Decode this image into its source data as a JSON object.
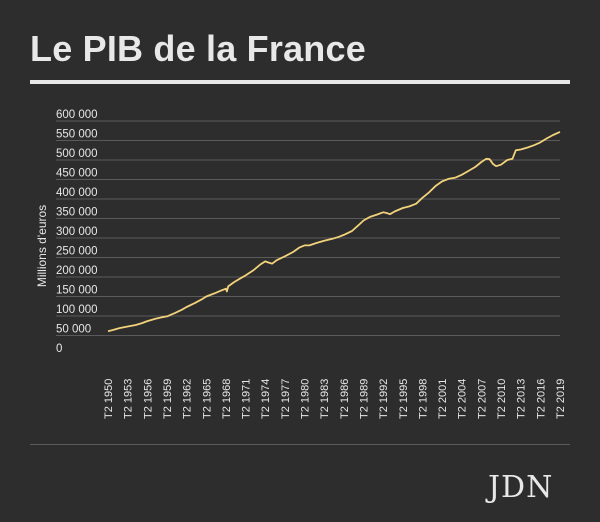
{
  "title": "Le PIB de la France",
  "logo": "JDN",
  "colors": {
    "background": "#2d2d2d",
    "line": "#f2d27a",
    "grid": "#6a6a6a",
    "text": "#e6e6e6"
  },
  "chart_data": {
    "type": "line",
    "title": "Le PIB de la France",
    "ylabel": "Millions d'euros",
    "xlabel": "",
    "ylim": [
      0,
      600000
    ],
    "yticks": [
      {
        "value": 0,
        "label": "0"
      },
      {
        "value": 50000,
        "label": "50 000"
      },
      {
        "value": 100000,
        "label": "100 000"
      },
      {
        "value": 150000,
        "label": "150 000"
      },
      {
        "value": 200000,
        "label": "200 000"
      },
      {
        "value": 250000,
        "label": "250 000"
      },
      {
        "value": 300000,
        "label": "300 000"
      },
      {
        "value": 350000,
        "label": "350 000"
      },
      {
        "value": 400000,
        "label": "400 000"
      },
      {
        "value": 450000,
        "label": "450 000"
      },
      {
        "value": 500000,
        "label": "500 000"
      },
      {
        "value": 550000,
        "label": "550 000"
      },
      {
        "value": 600000,
        "label": "600 000"
      }
    ],
    "xlim": [
      1950.25,
      2019.25
    ],
    "xticks": [
      {
        "value": 1950.25,
        "label": "T2 1950"
      },
      {
        "value": 1953.25,
        "label": "T2 1953"
      },
      {
        "value": 1956.25,
        "label": "T2 1956"
      },
      {
        "value": 1959.25,
        "label": "T2 1959"
      },
      {
        "value": 1962.25,
        "label": "T2 1962"
      },
      {
        "value": 1965.25,
        "label": "T2 1965"
      },
      {
        "value": 1968.25,
        "label": "T2 1968"
      },
      {
        "value": 1971.25,
        "label": "T2 1971"
      },
      {
        "value": 1974.25,
        "label": "T2 1974"
      },
      {
        "value": 1977.25,
        "label": "T2 1977"
      },
      {
        "value": 1980.25,
        "label": "T2 1980"
      },
      {
        "value": 1983.25,
        "label": "T2 1983"
      },
      {
        "value": 1986.25,
        "label": "T2 1986"
      },
      {
        "value": 1989.25,
        "label": "T2 1989"
      },
      {
        "value": 1992.25,
        "label": "T2 1992"
      },
      {
        "value": 1995.25,
        "label": "T2 1995"
      },
      {
        "value": 1998.25,
        "label": "T2 1998"
      },
      {
        "value": 2001.25,
        "label": "T2 2001"
      },
      {
        "value": 2004.25,
        "label": "T2 2004"
      },
      {
        "value": 2007.25,
        "label": "T2 2007"
      },
      {
        "value": 2010.25,
        "label": "T2 2010"
      },
      {
        "value": 2013.25,
        "label": "T2 2013"
      },
      {
        "value": 2016.25,
        "label": "T2 2016"
      },
      {
        "value": 2019.25,
        "label": "T2 2019"
      }
    ],
    "grid": true,
    "series": [
      {
        "points": [
          [
            1950.25,
            61000
          ],
          [
            1951.0,
            64000
          ],
          [
            1952.0,
            69000
          ],
          [
            1953.25,
            73000
          ],
          [
            1954.5,
            77000
          ],
          [
            1955.5,
            82000
          ],
          [
            1956.25,
            87000
          ],
          [
            1957.5,
            93000
          ],
          [
            1958.5,
            97000
          ],
          [
            1959.25,
            99000
          ],
          [
            1960.5,
            108000
          ],
          [
            1961.5,
            116000
          ],
          [
            1962.25,
            123000
          ],
          [
            1963.5,
            133000
          ],
          [
            1964.5,
            142000
          ],
          [
            1965.25,
            150000
          ],
          [
            1966.5,
            158000
          ],
          [
            1967.5,
            165000
          ],
          [
            1968.25,
            170000
          ],
          [
            1968.4,
            163000
          ],
          [
            1968.6,
            176000
          ],
          [
            1969.5,
            187000
          ],
          [
            1970.5,
            197000
          ],
          [
            1971.25,
            204000
          ],
          [
            1972.5,
            218000
          ],
          [
            1973.5,
            232000
          ],
          [
            1974.25,
            240000
          ],
          [
            1974.8,
            237000
          ],
          [
            1975.3,
            234000
          ],
          [
            1976.0,
            243000
          ],
          [
            1977.25,
            253000
          ],
          [
            1978.5,
            264000
          ],
          [
            1979.5,
            276000
          ],
          [
            1980.25,
            281000
          ],
          [
            1981.0,
            281000
          ],
          [
            1982.0,
            287000
          ],
          [
            1983.25,
            293000
          ],
          [
            1984.5,
            298000
          ],
          [
            1985.5,
            303000
          ],
          [
            1986.25,
            308000
          ],
          [
            1987.5,
            318000
          ],
          [
            1988.5,
            333000
          ],
          [
            1989.25,
            345000
          ],
          [
            1990.25,
            354000
          ],
          [
            1991.3,
            360000
          ],
          [
            1992.25,
            366000
          ],
          [
            1992.8,
            364000
          ],
          [
            1993.3,
            361000
          ],
          [
            1994.0,
            368000
          ],
          [
            1995.25,
            377000
          ],
          [
            1996.25,
            381000
          ],
          [
            1997.3,
            388000
          ],
          [
            1998.25,
            403000
          ],
          [
            1999.25,
            417000
          ],
          [
            2000.3,
            434000
          ],
          [
            2001.25,
            445000
          ],
          [
            2002.3,
            452000
          ],
          [
            2003.3,
            455000
          ],
          [
            2004.25,
            462000
          ],
          [
            2005.3,
            472000
          ],
          [
            2006.3,
            482000
          ],
          [
            2007.25,
            495000
          ],
          [
            2008.0,
            503000
          ],
          [
            2008.5,
            502000
          ],
          [
            2009.0,
            490000
          ],
          [
            2009.5,
            484000
          ],
          [
            2010.25,
            488000
          ],
          [
            2011.2,
            500000
          ],
          [
            2012.0,
            503000
          ],
          [
            2012.2,
            512000
          ],
          [
            2012.5,
            525000
          ],
          [
            2013.25,
            527000
          ],
          [
            2014.3,
            532000
          ],
          [
            2015.3,
            538000
          ],
          [
            2016.25,
            545000
          ],
          [
            2017.2,
            555000
          ],
          [
            2018.2,
            564000
          ],
          [
            2019.25,
            572000
          ]
        ]
      }
    ]
  }
}
